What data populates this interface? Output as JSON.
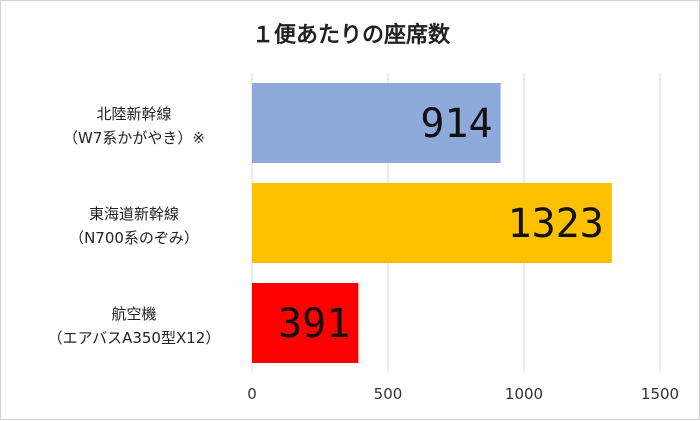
{
  "chart_data": {
    "type": "bar",
    "orientation": "horizontal",
    "title": "１便あたりの座席数",
    "categories": [
      {
        "lines": [
          "北陸新幹線",
          "（W7系かがやき）※"
        ]
      },
      {
        "lines": [
          "東海道新幹線",
          "（N700系のぞみ）"
        ]
      },
      {
        "lines": [
          "航空機",
          "（エアバスA350型X12）"
        ]
      }
    ],
    "values": [
      914,
      1323,
      391
    ],
    "data_labels": [
      "914",
      "1323",
      "391"
    ],
    "bar_colors": [
      "#8eaadb",
      "#ffc000",
      "#ff0000"
    ],
    "xlim": [
      0,
      1500
    ],
    "xticks": [
      "0",
      "500",
      "1000",
      "1500"
    ],
    "grid": true,
    "legend": "none"
  }
}
